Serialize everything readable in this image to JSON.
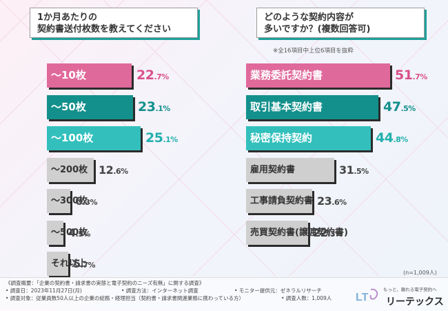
{
  "left_panel": {
    "title_line1": "1か月あたりの",
    "title_line2": "契約書送付枚数を教えてください"
  },
  "right_panel": {
    "title_line1": "どのような契約内容が",
    "title_line2": "多いですか？(複数回答可)",
    "note": "※全16項目中上位6項目を抜粋",
    "sample": "(n=1,009人)"
  },
  "chart_data": [
    {
      "type": "bar",
      "orientation": "horizontal",
      "title": "1か月あたりの契約書送付枚数を教えてください",
      "categories": [
        "〜10枚",
        "〜50枚",
        "〜100枚",
        "〜200枚",
        "〜300枚",
        "〜500枚",
        "それ以上"
      ],
      "values": [
        22.7,
        23.1,
        25.1,
        12.6,
        6.3,
        4.5,
        5.7
      ],
      "value_labels": [
        {
          "int": "22",
          "dec": ".7%"
        },
        {
          "int": "23",
          "dec": ".1%"
        },
        {
          "int": "25",
          "dec": ".1%"
        },
        {
          "int": "12",
          "dec": ".6%"
        },
        {
          "int": "6",
          "dec": ".3%"
        },
        {
          "int": "4",
          "dec": ".5%"
        },
        {
          "int": "5",
          "dec": ".7%"
        }
      ],
      "unit": "%",
      "colors": [
        "#e0699b",
        "#14908c",
        "#33c0bd",
        "#cfcfcf",
        "#cfcfcf",
        "#cfcfcf",
        "#cfcfcf"
      ],
      "value_colors": [
        "#d9508a",
        "#14908c",
        "#22b0ad",
        "#444444",
        "#444444",
        "#444444",
        "#444444"
      ]
    },
    {
      "type": "bar",
      "orientation": "horizontal",
      "title": "どのような契約内容が多いですか？(複数回答可)",
      "categories": [
        "業務委託契約書",
        "取引基本契約書",
        "秘密保持契約",
        "雇用契約書",
        "工事請負契約書",
        "売買契約書(譲渡契約書)"
      ],
      "values": [
        51.7,
        47.5,
        44.8,
        31.5,
        23.6,
        22.3
      ],
      "value_labels": [
        {
          "int": "51",
          "dec": ".7%"
        },
        {
          "int": "47",
          "dec": ".5%"
        },
        {
          "int": "44",
          "dec": ".8%"
        },
        {
          "int": "31",
          "dec": ".5%"
        },
        {
          "int": "23",
          "dec": ".6%"
        },
        {
          "int": "22",
          "dec": ".3%"
        }
      ],
      "unit": "%",
      "colors": [
        "#e0699b",
        "#14908c",
        "#33c0bd",
        "#cfcfcf",
        "#cfcfcf",
        "#cfcfcf"
      ],
      "value_colors": [
        "#d9508a",
        "#14908c",
        "#22b0ad",
        "#444444",
        "#444444",
        "#444444"
      ]
    }
  ],
  "footer": {
    "line1": "《調査概要：「企業の契約書・請求書の実態と電子契約のニーズ有無」に関する調査》",
    "date": "• 調査日：2023年11月27日(月)",
    "method": "• 調査方法：インターネット調査",
    "provider": "• モニター提供元：ゼネラルリサーチ",
    "target": "• 調査対象：従業員数50人以上の企業の総務・経理担当（契約書・請求書関連業務に携わっている方）",
    "count": "• 調査人数：1,009人"
  },
  "logo": {
    "tagline": "もっと、頼れる電子契約へ",
    "name": "リーテックス",
    "mark": "LT"
  }
}
